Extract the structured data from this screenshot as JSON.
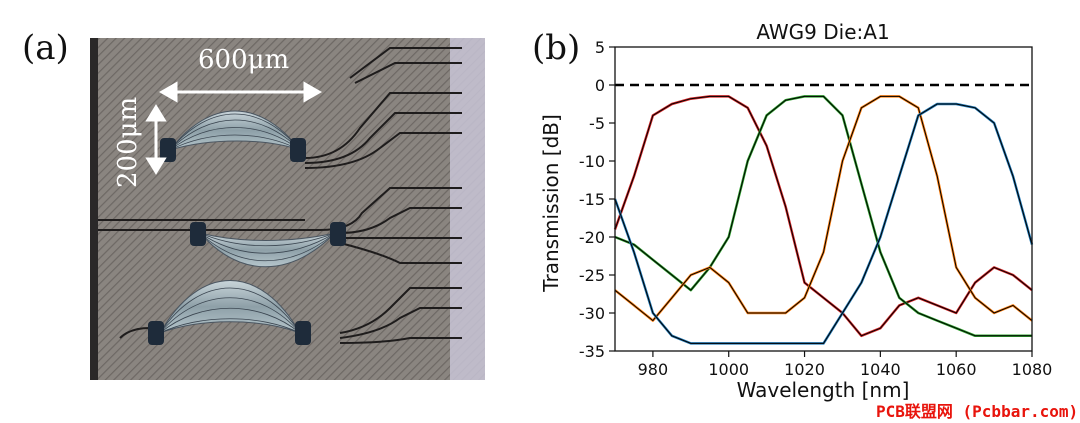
{
  "panel_a": {
    "label": "(a)",
    "scale_horizontal": "600μm",
    "scale_vertical": "200μm"
  },
  "panel_b": {
    "label": "(b)"
  },
  "watermark": "PCB联盟网 (Pcbbar.com)",
  "colors": {
    "red": "#d62728",
    "green": "#2ca02c",
    "orange": "#ff7f0e",
    "blue": "#1f77b4",
    "fit": "#000000"
  },
  "chart_data": {
    "type": "line",
    "title": "AWG9 Die:A1",
    "xlabel": "Wavelength [nm]",
    "ylabel": "Transmission [dB]",
    "xlim": [
      970,
      1080
    ],
    "ylim": [
      -35,
      5
    ],
    "xticks": [
      980,
      1000,
      1020,
      1040,
      1060,
      1080
    ],
    "yticks": [
      5,
      0,
      -5,
      -10,
      -15,
      -20,
      -25,
      -30,
      -35
    ],
    "grid": false,
    "reference_line": {
      "y": 0,
      "style": "dashed",
      "color": "#000000"
    },
    "x": [
      970,
      975,
      980,
      985,
      990,
      995,
      1000,
      1005,
      1010,
      1015,
      1020,
      1025,
      1030,
      1035,
      1040,
      1045,
      1050,
      1055,
      1060,
      1065,
      1070,
      1075,
      1080
    ],
    "series": [
      {
        "color": "#d62728",
        "values": [
          -19,
          -12,
          -4,
          -2.5,
          -1.8,
          -1.5,
          -1.5,
          -3,
          -8,
          -16,
          -26,
          -28,
          -30,
          -33,
          -32,
          -29,
          -28,
          -29,
          -30,
          -26,
          -24,
          -25,
          -27
        ]
      },
      {
        "color": "#2ca02c",
        "values": [
          -20,
          -21,
          -23,
          -25,
          -27,
          -24,
          -20,
          -10,
          -4,
          -2,
          -1.5,
          -1.5,
          -4,
          -13,
          -22,
          -28,
          -30,
          -31,
          -32,
          -33,
          -33,
          -33,
          -33
        ]
      },
      {
        "color": "#ff7f0e",
        "values": [
          -27,
          -29,
          -31,
          -28,
          -25,
          -24,
          -26,
          -30,
          -30,
          -30,
          -28,
          -22,
          -10,
          -3,
          -1.5,
          -1.5,
          -3,
          -12,
          -24,
          -28,
          -30,
          -29,
          -31
        ]
      },
      {
        "color": "#1f77b4",
        "values": [
          -15,
          -22,
          -30,
          -33,
          -34,
          -34,
          -34,
          -34,
          -34,
          -34,
          -34,
          -34,
          -30,
          -26,
          -20,
          -12,
          -4,
          -2.5,
          -2.5,
          -3,
          -5,
          -12,
          -21
        ]
      }
    ]
  }
}
